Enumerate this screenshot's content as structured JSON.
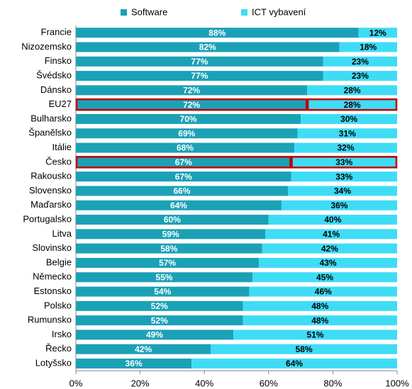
{
  "chart_data": {
    "type": "stacked_barh",
    "categories": [
      "Francie",
      "Nizozemsko",
      "Finsko",
      "Švédsko",
      "Dánsko",
      "EU27",
      "Bulharsko",
      "Španělsko",
      "Itálie",
      "Česko",
      "Rakousko",
      "Slovensko",
      "Maďarsko",
      "Portugalsko",
      "Litva",
      "Slovinsko",
      "Belgie",
      "Německo",
      "Estonsko",
      "Polsko",
      "Rumunsko",
      "Irsko",
      "Řecko",
      "Lotyšsko"
    ],
    "series": [
      {
        "name": "Software",
        "color": "#1ba1b6",
        "label_color": "#ffffff",
        "values": [
          88,
          82,
          77,
          77,
          72,
          72,
          70,
          69,
          68,
          67,
          67,
          66,
          64,
          60,
          59,
          58,
          57,
          55,
          54,
          52,
          52,
          49,
          42,
          36
        ],
        "value_labels": [
          "88%",
          "82%",
          "77%",
          "77%",
          "72%",
          "72%",
          "70%",
          "69%",
          "68%",
          "67%",
          "67%",
          "66%",
          "64%",
          "60%",
          "59%",
          "58%",
          "57%",
          "55%",
          "54%",
          "52%",
          "52%",
          "49%",
          "42%",
          "36%"
        ]
      },
      {
        "name": "ICT vybavení",
        "color": "#3fdcf6",
        "label_color": "#000000",
        "values": [
          12,
          18,
          23,
          23,
          28,
          28,
          30,
          31,
          32,
          33,
          33,
          34,
          36,
          40,
          41,
          42,
          43,
          45,
          46,
          48,
          48,
          51,
          58,
          64
        ],
        "value_labels": [
          "12%",
          "18%",
          "23%",
          "23%",
          "28%",
          "28%",
          "30%",
          "31%",
          "32%",
          "33%",
          "33%",
          "34%",
          "36%",
          "40%",
          "41%",
          "42%",
          "43%",
          "45%",
          "46%",
          "48%",
          "48%",
          "51%",
          "58%",
          "64%"
        ]
      }
    ],
    "xlim": [
      0,
      100
    ],
    "xticks": [
      {
        "value": 0,
        "label": "0%"
      },
      {
        "value": 20,
        "label": "20%"
      },
      {
        "value": 40,
        "label": "40%"
      },
      {
        "value": 60,
        "label": "60%"
      },
      {
        "value": 80,
        "label": "80%"
      },
      {
        "value": 100,
        "label": "100%"
      }
    ],
    "highlight": [
      "EU27",
      "Česko"
    ],
    "highlight_color": "#c00000",
    "legend": "top",
    "grid": false
  }
}
